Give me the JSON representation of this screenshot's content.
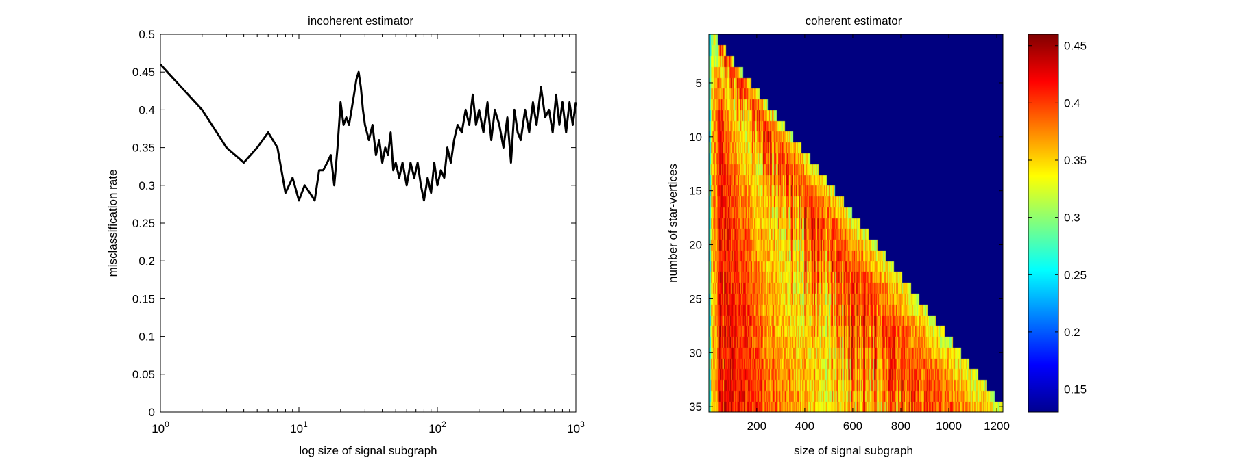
{
  "chart_data": [
    {
      "type": "line",
      "title": "incoherent estimator",
      "xlabel": "log size of signal subgraph",
      "ylabel": "misclassification rate",
      "x_scale": "log",
      "xlim": [
        1,
        1000
      ],
      "ylim": [
        0,
        0.5
      ],
      "x_ticks": [
        {
          "value": 1,
          "base": "10",
          "exp": "0"
        },
        {
          "value": 10,
          "base": "10",
          "exp": "1"
        },
        {
          "value": 100,
          "base": "10",
          "exp": "2"
        },
        {
          "value": 1000,
          "base": "10",
          "exp": "3"
        }
      ],
      "y_ticks": [
        "0",
        "0.05",
        "0.1",
        "0.15",
        "0.2",
        "0.25",
        "0.3",
        "0.35",
        "0.4",
        "0.45",
        "0.5"
      ],
      "line_color": "#000000",
      "grid": false,
      "series": [
        {
          "x": [
            1,
            2,
            3,
            4,
            5,
            6,
            7,
            8,
            9,
            10,
            11,
            12,
            13,
            14,
            15,
            16,
            17,
            18,
            19,
            20,
            21,
            22,
            23,
            24,
            25,
            26,
            27,
            28,
            29,
            30,
            32,
            34,
            36,
            38,
            40,
            42,
            44,
            46,
            48,
            50,
            53,
            56,
            60,
            64,
            68,
            72,
            76,
            80,
            85,
            90,
            95,
            100,
            106,
            112,
            118,
            125,
            132,
            140,
            150,
            160,
            170,
            180,
            190,
            200,
            215,
            230,
            245,
            260,
            280,
            300,
            320,
            340,
            360,
            380,
            400,
            430,
            460,
            490,
            520,
            560,
            600,
            640,
            680,
            720,
            760,
            800,
            850,
            900,
            950,
            1000
          ],
          "y": [
            0.46,
            0.4,
            0.35,
            0.33,
            0.35,
            0.37,
            0.35,
            0.29,
            0.31,
            0.28,
            0.3,
            0.29,
            0.28,
            0.32,
            0.32,
            0.33,
            0.34,
            0.3,
            0.35,
            0.41,
            0.38,
            0.39,
            0.38,
            0.4,
            0.42,
            0.44,
            0.45,
            0.43,
            0.4,
            0.38,
            0.36,
            0.38,
            0.34,
            0.36,
            0.33,
            0.35,
            0.34,
            0.37,
            0.32,
            0.33,
            0.31,
            0.33,
            0.3,
            0.33,
            0.31,
            0.33,
            0.3,
            0.28,
            0.31,
            0.29,
            0.33,
            0.3,
            0.32,
            0.31,
            0.35,
            0.33,
            0.36,
            0.38,
            0.37,
            0.4,
            0.38,
            0.42,
            0.38,
            0.4,
            0.37,
            0.41,
            0.36,
            0.4,
            0.38,
            0.35,
            0.39,
            0.33,
            0.4,
            0.37,
            0.36,
            0.4,
            0.37,
            0.41,
            0.38,
            0.43,
            0.39,
            0.4,
            0.37,
            0.42,
            0.38,
            0.41,
            0.37,
            0.41,
            0.38,
            0.41
          ]
        }
      ]
    },
    {
      "type": "heatmap",
      "title": "coherent estimator",
      "xlabel": "size of signal subgraph",
      "ylabel": "number of star-vertices",
      "xlim": [
        1,
        1225
      ],
      "ylim": [
        1,
        35
      ],
      "x_ticks": [
        "200",
        "400",
        "600",
        "800",
        "1000",
        "1200"
      ],
      "y_ticks": [
        "5",
        "10",
        "15",
        "20",
        "25",
        "30",
        "35"
      ],
      "rows": 35,
      "columns": 1225,
      "cell_rule": "cell (r, c) has a value only when c <= 35 * r; otherwise it is the minimum (dark blue)",
      "masked_value": 0.13,
      "value_range": [
        0.13,
        0.46
      ],
      "value_description": "misclassification rate: ~0.2-0.27 near small sizes, mostly 0.33-0.45 (yellow to red) across the triangle",
      "colormap": "jet",
      "colorbar": {
        "position": "right",
        "ticks": [
          "0.15",
          "0.2",
          "0.25",
          "0.3",
          "0.35",
          "0.4",
          "0.45"
        ],
        "range": [
          0.13,
          0.46
        ]
      }
    }
  ]
}
